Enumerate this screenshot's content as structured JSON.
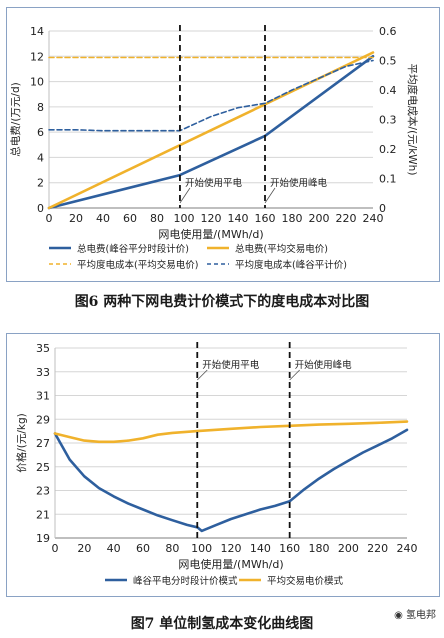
{
  "chart_data": [
    {
      "type": "line",
      "title": "",
      "xlabel": "网电使用量/(MWh/d)",
      "ylabel": "总电费/(万元/d)",
      "y2label": "平均度电成本/(元/kWh)",
      "xlim": [
        0,
        240
      ],
      "ylim": [
        0,
        14
      ],
      "y2lim": [
        0,
        0.6
      ],
      "xticks": [
        "0",
        "20",
        "40",
        "60",
        "80",
        "100",
        "120",
        "140",
        "160",
        "180",
        "200",
        "220",
        "240"
      ],
      "yticks": [
        "0",
        "2",
        "4",
        "6",
        "8",
        "10",
        "12",
        "14"
      ],
      "y2ticks": [
        "0",
        "0.1",
        "0.2",
        "0.3",
        "0.4",
        "0.5",
        "0.6"
      ],
      "grid": true,
      "legend_position": "bottom",
      "markers": [
        {
          "x": 97,
          "label": "开始使用平电"
        },
        {
          "x": 160,
          "label": "开始使用峰电"
        }
      ],
      "series": [
        {
          "name": "总电费(峰谷平分时段计价)",
          "axis": "left",
          "style": "solid",
          "color": "#2e5f9e",
          "x": [
            0,
            97,
            160,
            240
          ],
          "values": [
            0,
            2.6,
            5.7,
            12.0
          ]
        },
        {
          "name": "总电费(平均交易电价)",
          "axis": "left",
          "style": "solid",
          "color": "#f0b22c",
          "x": [
            0,
            240
          ],
          "values": [
            0,
            12.3
          ]
        },
        {
          "name": "平均度电成本(平均交易电价)",
          "axis": "right",
          "style": "dashed",
          "color": "#f0b22c",
          "x": [
            0,
            240
          ],
          "values": [
            0.51,
            0.51
          ]
        },
        {
          "name": "平均度电成本(峰谷平计价)",
          "axis": "right",
          "style": "dashed",
          "color": "#2e5f9e",
          "x": [
            0,
            20,
            40,
            60,
            80,
            97,
            120,
            140,
            160,
            180,
            200,
            220,
            240
          ],
          "values": [
            0.265,
            0.265,
            0.262,
            0.262,
            0.262,
            0.262,
            0.31,
            0.34,
            0.355,
            0.4,
            0.44,
            0.48,
            0.5
          ]
        }
      ]
    },
    {
      "type": "line",
      "title": "",
      "xlabel": "网电使用量/(MWh/d)",
      "ylabel": "价格/(元/kg)",
      "xlim": [
        0,
        240
      ],
      "ylim": [
        19,
        35
      ],
      "xticks": [
        "0",
        "20",
        "40",
        "60",
        "80",
        "100",
        "120",
        "140",
        "160",
        "180",
        "200",
        "220",
        "240"
      ],
      "yticks": [
        "19",
        "21",
        "23",
        "25",
        "27",
        "29",
        "31",
        "33",
        "35"
      ],
      "grid": true,
      "legend_position": "bottom",
      "markers": [
        {
          "x": 97,
          "label": "开始使用平电"
        },
        {
          "x": 160,
          "label": "开始使用峰电"
        }
      ],
      "series": [
        {
          "name": "峰谷平电分时段计价模式",
          "color": "#2e5f9e",
          "x": [
            0,
            10,
            20,
            30,
            40,
            50,
            60,
            70,
            80,
            90,
            97,
            100,
            110,
            120,
            130,
            140,
            150,
            160,
            170,
            180,
            190,
            200,
            210,
            220,
            230,
            240
          ],
          "values": [
            27.8,
            25.6,
            24.2,
            23.2,
            22.5,
            21.9,
            21.4,
            20.9,
            20.5,
            20.1,
            19.9,
            19.6,
            20.1,
            20.6,
            21.0,
            21.4,
            21.7,
            22.1,
            23.1,
            24.0,
            24.8,
            25.5,
            26.2,
            26.8,
            27.4,
            28.1
          ]
        },
        {
          "name": "平均交易电价模式",
          "color": "#f0b22c",
          "x": [
            0,
            10,
            20,
            30,
            40,
            50,
            60,
            70,
            80,
            97,
            120,
            140,
            160,
            180,
            200,
            220,
            240
          ],
          "values": [
            27.8,
            27.5,
            27.2,
            27.1,
            27.1,
            27.2,
            27.4,
            27.7,
            27.85,
            28.0,
            28.2,
            28.35,
            28.45,
            28.55,
            28.62,
            28.7,
            28.8
          ]
        }
      ]
    }
  ],
  "captions": {
    "fig6": "图6   两种下网电费计价模式下的度电成本对比图",
    "fig7": "图7   单位制氢成本变化曲线图"
  },
  "watermark": "氢电邦"
}
